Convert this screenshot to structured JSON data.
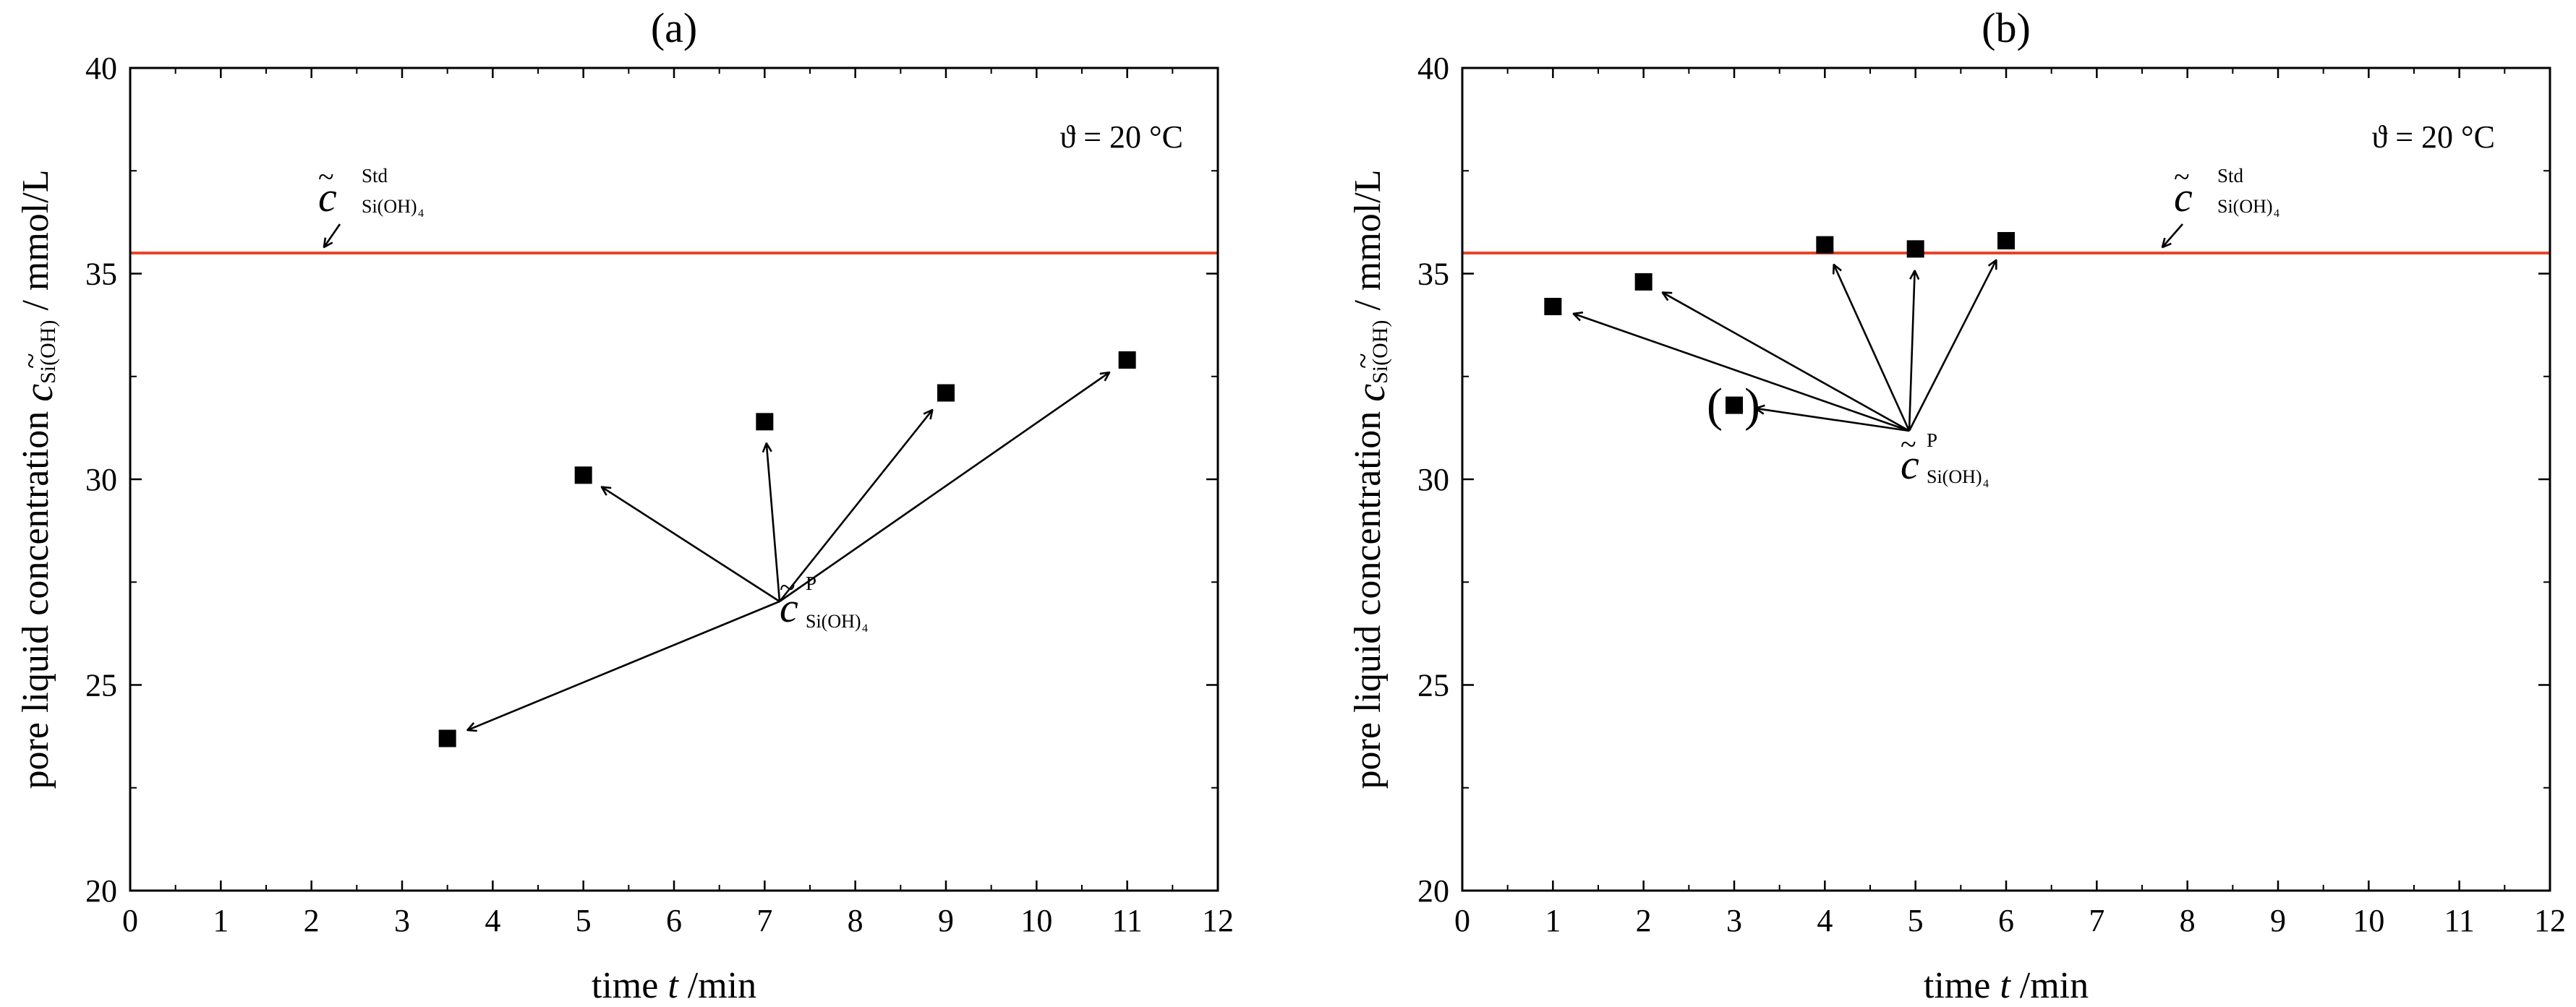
{
  "chart_data": [
    {
      "type": "scatter",
      "panel_label": "(a)",
      "xlabel": "time t /min",
      "xlabel_parts": [
        "time ",
        "t",
        " /min"
      ],
      "ylabel_parts": [
        "pore liquid concentration ",
        "c",
        "Si(OH)",
        " / mmol/L"
      ],
      "xlim": [
        0,
        12
      ],
      "ylim": [
        20,
        40
      ],
      "xticks": [
        "0",
        "1",
        "2",
        "3",
        "4",
        "5",
        "6",
        "7",
        "8",
        "9",
        "10",
        "11",
        "12"
      ],
      "yticks": [
        "20",
        "25",
        "30",
        "35",
        "40"
      ],
      "temperature_label": "ϑ = 20 °C",
      "reference_line": {
        "name": "c̃ Std Si(OH)4",
        "y": 35.5,
        "color": "#e8442a"
      },
      "series": [
        {
          "name": "c̃ P Si(OH)4",
          "x": [
            3.5,
            5,
            7,
            9,
            11
          ],
          "y": [
            23.7,
            30.1,
            31.4,
            32.1,
            32.9
          ]
        }
      ],
      "annotation_symbol": {
        "main": "c",
        "std_sup": "Std",
        "p_sup": "P",
        "sub": "Si(OH)",
        "sub_index": "4"
      }
    },
    {
      "type": "scatter",
      "panel_label": "(b)",
      "xlabel": "time t /min",
      "xlabel_parts": [
        "time ",
        "t",
        " /min"
      ],
      "ylabel_parts": [
        "pore liquid concentration ",
        "c",
        "Si(OH)",
        " / mmol/L"
      ],
      "xlim": [
        0,
        12
      ],
      "ylim": [
        20,
        40
      ],
      "xticks": [
        "0",
        "1",
        "2",
        "3",
        "4",
        "5",
        "6",
        "7",
        "8",
        "9",
        "10",
        "11",
        "12"
      ],
      "yticks": [
        "20",
        "25",
        "30",
        "35",
        "40"
      ],
      "temperature_label": "ϑ = 20 °C",
      "reference_line": {
        "name": "c̃ Std Si(OH)4",
        "y": 35.5,
        "color": "#e8442a"
      },
      "series": [
        {
          "name": "c̃ P Si(OH)4",
          "x": [
            1,
            2,
            3,
            4,
            5,
            6
          ],
          "y": [
            34.2,
            34.8,
            31.8,
            35.7,
            35.6,
            35.8
          ]
        }
      ],
      "excluded_point_index": 2,
      "annotation_symbol": {
        "main": "c",
        "std_sup": "Std",
        "p_sup": "P",
        "sub": "Si(OH)",
        "sub_index": "4"
      }
    }
  ]
}
